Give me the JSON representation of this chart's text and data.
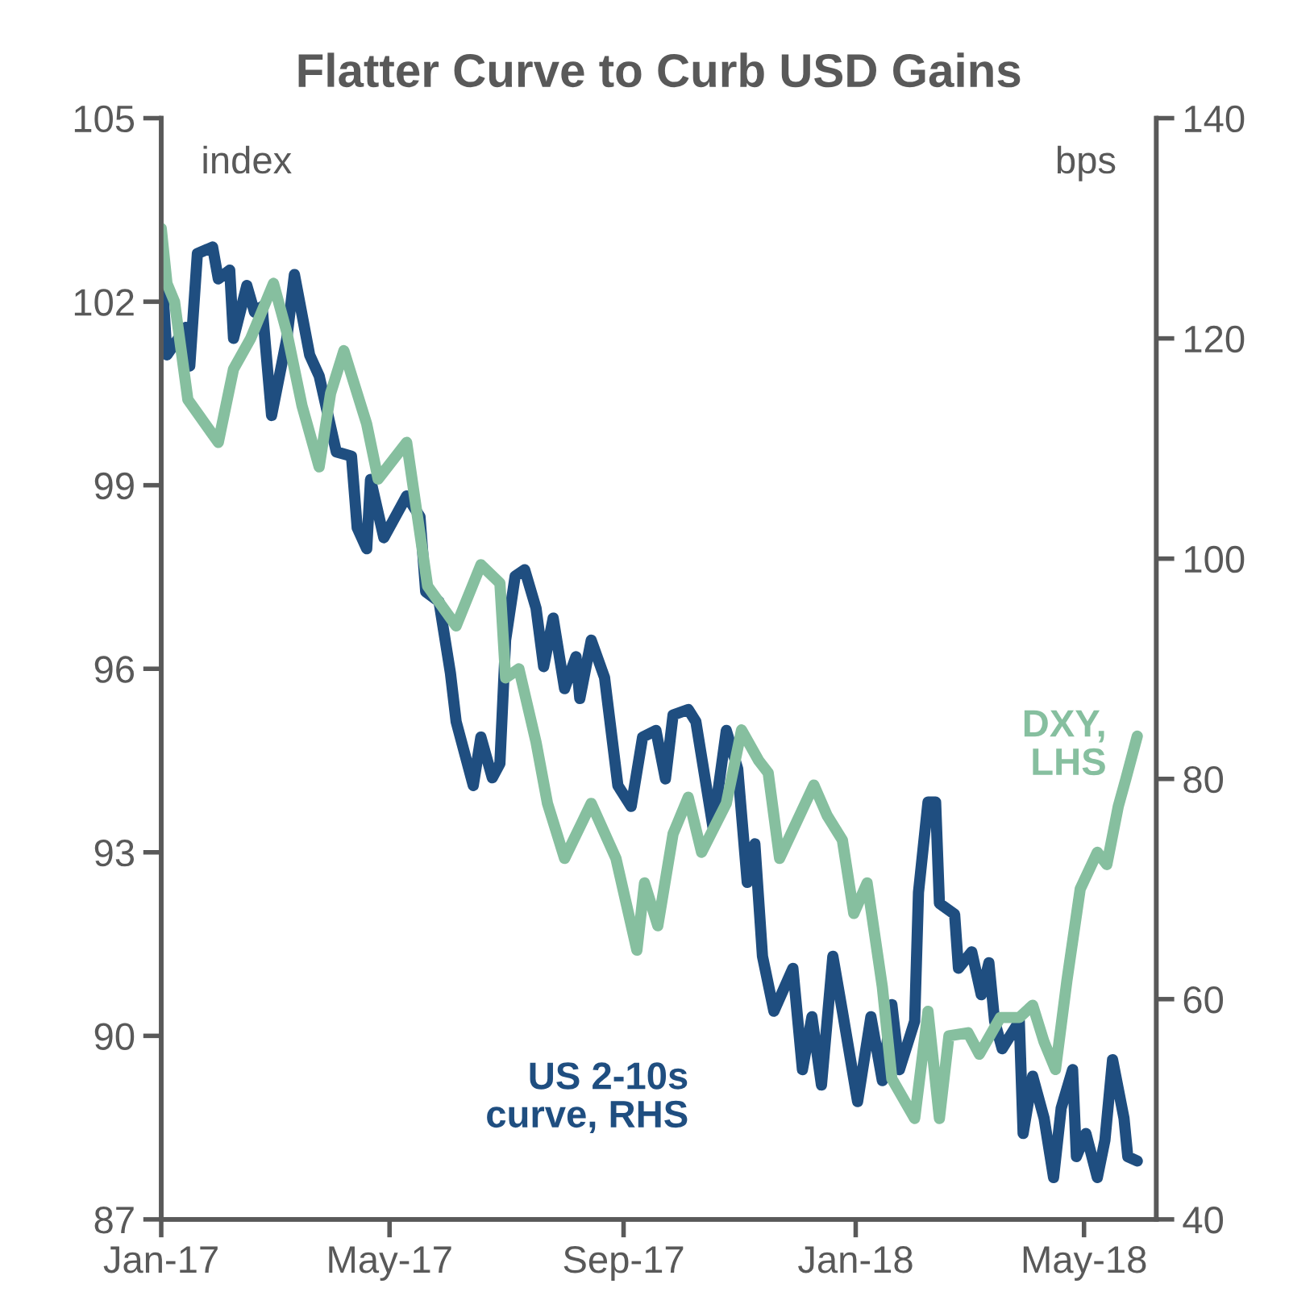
{
  "chart_data": {
    "type": "line",
    "title": "Flatter Curve to Curb USD Gains",
    "annotations": [
      "index",
      "bps"
    ],
    "xlim": [
      "2017-01-01",
      "2018-06-08"
    ],
    "xticks": [
      {
        "value": "2017-01-01",
        "label": "Jan-17"
      },
      {
        "value": "2017-05-01",
        "label": "May-17"
      },
      {
        "value": "2017-09-01",
        "label": "Sep-17"
      },
      {
        "value": "2018-01-01",
        "label": "Jan-18"
      },
      {
        "value": "2018-05-01",
        "label": "May-18"
      }
    ],
    "ylim": [
      87,
      105
    ],
    "yticks": [
      87,
      90,
      93,
      96,
      99,
      102,
      105
    ],
    "y2lim": [
      40,
      140
    ],
    "y2ticks": [
      40,
      60,
      80,
      100,
      120,
      140
    ],
    "grid": false,
    "legend": false,
    "series": [
      {
        "name": "DXY,\nLHS",
        "color": "#86bf9f",
        "x": [
          "2017-01-01",
          "2017-01-04",
          "2017-01-08",
          "2017-01-15",
          "2017-01-31",
          "2017-02-08",
          "2017-02-17",
          "2017-03-01",
          "2017-03-08",
          "2017-03-16",
          "2017-03-25",
          "2017-03-31",
          "2017-04-07",
          "2017-04-19",
          "2017-04-25",
          "2017-05-10",
          "2017-05-21",
          "2017-06-05",
          "2017-06-18",
          "2017-06-28",
          "2017-07-01",
          "2017-07-08",
          "2017-07-17",
          "2017-07-23",
          "2017-08-01",
          "2017-08-15",
          "2017-08-28",
          "2017-09-08",
          "2017-09-12",
          "2017-09-19",
          "2017-09-27",
          "2017-10-05",
          "2017-10-12",
          "2017-10-25",
          "2017-11-02",
          "2017-11-11",
          "2017-11-16",
          "2017-11-22",
          "2017-11-28",
          "2017-12-10",
          "2017-12-17",
          "2017-12-25",
          "2017-12-31",
          "2018-01-07",
          "2018-01-15",
          "2018-01-20",
          "2018-02-01",
          "2018-02-08",
          "2018-02-14",
          "2018-02-19",
          "2018-03-01",
          "2018-03-07",
          "2018-03-18",
          "2018-03-28",
          "2018-04-04",
          "2018-04-10",
          "2018-04-16",
          "2018-04-22",
          "2018-04-29",
          "2018-05-08",
          "2018-05-13",
          "2018-05-19",
          "2018-05-23",
          "2018-05-29"
        ],
        "values": [
          103.2,
          102.3,
          102.0,
          100.4,
          99.7,
          100.9,
          101.4,
          102.3,
          101.5,
          100.3,
          99.3,
          100.5,
          101.2,
          100.0,
          99.1,
          99.7,
          97.35,
          96.7,
          97.7,
          97.4,
          95.85,
          96.0,
          94.8,
          93.8,
          92.9,
          93.8,
          92.9,
          91.4,
          92.5,
          91.8,
          93.3,
          93.9,
          93.0,
          93.8,
          95.0,
          94.5,
          94.3,
          92.9,
          93.3,
          94.1,
          93.6,
          93.2,
          92.0,
          92.5,
          90.8,
          89.3,
          88.65,
          90.4,
          88.65,
          90.0,
          90.05,
          89.7,
          90.3,
          90.3,
          90.5,
          89.9,
          89.45,
          90.9,
          92.4,
          93.0,
          92.8,
          93.75,
          94.2,
          94.9
        ]
      },
      {
        "name": "US 2-10s\ncurve, RHS",
        "color": "#1f4e80",
        "axis": "y2",
        "x": [
          "2017-01-01",
          "2017-01-04",
          "2017-01-14",
          "2017-01-16",
          "2017-01-20",
          "2017-01-28",
          "2017-01-31",
          "2017-02-06",
          "2017-02-08",
          "2017-02-15",
          "2017-02-19",
          "2017-02-23",
          "2017-02-28",
          "2017-03-08",
          "2017-03-12",
          "2017-03-20",
          "2017-03-25",
          "2017-04-03",
          "2017-04-11",
          "2017-04-14",
          "2017-04-19",
          "2017-04-21",
          "2017-04-28",
          "2017-05-10",
          "2017-05-17",
          "2017-05-20",
          "2017-05-27",
          "2017-06-02",
          "2017-06-05",
          "2017-06-14",
          "2017-06-18",
          "2017-06-24",
          "2017-06-28",
          "2017-07-01",
          "2017-07-06",
          "2017-07-11",
          "2017-07-17",
          "2017-07-21",
          "2017-07-26",
          "2017-08-01",
          "2017-08-07",
          "2017-08-09",
          "2017-08-15",
          "2017-08-22",
          "2017-08-29",
          "2017-09-05",
          "2017-09-11",
          "2017-09-18",
          "2017-09-23",
          "2017-09-27",
          "2017-10-05",
          "2017-10-09",
          "2017-10-18",
          "2017-10-25",
          "2017-10-31",
          "2017-11-05",
          "2017-11-09",
          "2017-11-13",
          "2017-11-19",
          "2017-11-29",
          "2017-12-04",
          "2017-12-09",
          "2017-12-14",
          "2017-12-20",
          "2017-12-25",
          "2018-01-02",
          "2018-01-09",
          "2018-01-15",
          "2018-01-20",
          "2018-01-24",
          "2018-02-01",
          "2018-02-03",
          "2018-02-08",
          "2018-02-12",
          "2018-02-14",
          "2018-02-22",
          "2018-02-24",
          "2018-03-03",
          "2018-03-08",
          "2018-03-12",
          "2018-03-15",
          "2018-03-19",
          "2018-03-28",
          "2018-03-30",
          "2018-04-04",
          "2018-04-10",
          "2018-04-15",
          "2018-04-19",
          "2018-04-25",
          "2018-04-27",
          "2018-05-02",
          "2018-05-08",
          "2018-05-12",
          "2018-05-16",
          "2018-05-22",
          "2018-05-24",
          "2018-05-29"
        ],
        "values": [
          126.8,
          118.5,
          121,
          117.5,
          127.7,
          128.3,
          125.4,
          126.2,
          120,
          124.8,
          122.4,
          122.9,
          113,
          120,
          125.8,
          118.5,
          116.6,
          109.7,
          109.3,
          102.8,
          100.9,
          107.2,
          101.9,
          105.7,
          103.8,
          97,
          96.1,
          89.6,
          85.2,
          79.4,
          83.8,
          80.1,
          81.4,
          92.6,
          98.4,
          99,
          95.5,
          90.2,
          94.6,
          88.2,
          91.1,
          87.3,
          92.6,
          89.2,
          79.4,
          77.5,
          83.8,
          84.4,
          80,
          85.8,
          86.3,
          85.2,
          75.6,
          84.4,
          80.9,
          70.6,
          74.1,
          63.9,
          58.9,
          62.8,
          53.6,
          58.4,
          52.2,
          63.9,
          58.9,
          50.7,
          58.4,
          52.6,
          59.5,
          53.6,
          58.0,
          69.7,
          77.9,
          77.9,
          68.7,
          67.7,
          62.8,
          64.3,
          60.4,
          63.3,
          58,
          55.5,
          58,
          47.8,
          53,
          49.2,
          43.8,
          50.1,
          53.6,
          45.7,
          47.8,
          43.8,
          47.2,
          54.5,
          49.2,
          45.7,
          45.3
        ]
      }
    ]
  }
}
